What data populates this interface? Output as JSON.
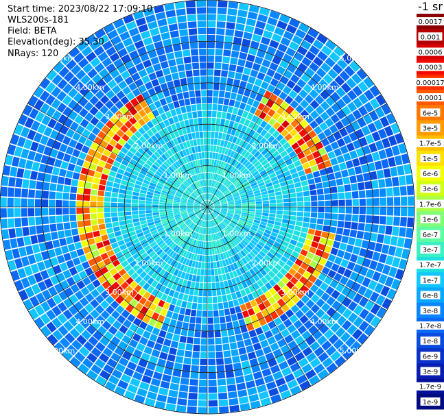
{
  "info": {
    "start_time": "Start time: 2023/08/22 17:09:10",
    "instrument": "WLS200s-181",
    "field": "Field: BETA",
    "elevation": "Elevation(deg): 35.30",
    "nrays": "NRays: 120"
  },
  "chart_data": {
    "type": "heatmap",
    "projection": "polar-ppi",
    "field": "BETA",
    "n_rays": 120,
    "elevation_deg": 35.3,
    "range_unit": "km",
    "max_range_km": 5.0,
    "range_rings_km": [
      1,
      2,
      3,
      4,
      5
    ],
    "ring_labels": [
      "1.00km",
      "2.00km",
      "3.00km",
      "4.00km",
      "5.00km"
    ],
    "radial_spokes_deg": [
      0,
      30,
      60,
      90,
      120,
      150,
      180,
      210,
      240,
      270,
      300,
      330
    ],
    "scale": "log",
    "colorbar": {
      "unit_label": "-1 sr",
      "labels": [
        "0.0017",
        "0.001",
        "0.0006",
        "0.0003",
        "0.00017",
        "0.0001",
        "6e-5",
        "3e-5",
        "1.7e-5",
        "1e-5",
        "6e-6",
        "3e-6",
        "1.7e-6",
        "1e-6",
        "6e-7",
        "3e-7",
        "1.7e-7",
        "1e-7",
        "6e-8",
        "3e-8",
        "1.7e-8",
        "1e-8",
        "6e-9",
        "3e-9",
        "1.7e-9",
        "1e-9"
      ],
      "colors": [
        "#8a0000",
        "#b40000",
        "#d60000",
        "#f20a00",
        "#ff3000",
        "#ff5a00",
        "#ff7800",
        "#ff9a00",
        "#ffbe00",
        "#ffe000",
        "#f4ff00",
        "#d0ff18",
        "#a8ff48",
        "#80ff78",
        "#5effa0",
        "#3cf0c4",
        "#1ee0e0",
        "#12c6ff",
        "#08a8ff",
        "#0a86ff",
        "#0a68f4",
        "#0a4ce0",
        "#0a32c8",
        "#081eb0",
        "#04109a",
        "#000a80"
      ]
    },
    "aerosol_layer": {
      "description_range_km": [
        2.6,
        3.1
      ],
      "peak_value": "0.0003"
    }
  }
}
